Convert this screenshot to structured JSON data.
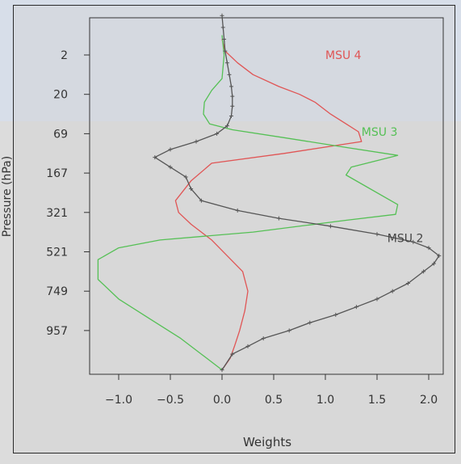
{
  "chart_data": {
    "type": "line",
    "xlabel": "Weights",
    "ylabel": "Pressure (hPa)",
    "xlim": [
      -1.25,
      2.2
    ],
    "x_ticks": [
      -1.0,
      -0.5,
      0.0,
      0.5,
      1.0,
      1.5,
      2.0
    ],
    "x_tick_labels": [
      "−1.0",
      "−0.5",
      "0.0",
      "0.5",
      "1.0",
      "1.5",
      "2.0"
    ],
    "y_tick_labels": [
      "2",
      "20",
      "69",
      "167",
      "321",
      "521",
      "749",
      "957"
    ],
    "y_axis_direction": "pressure increasing downward (altitude decreasing)",
    "grid": false,
    "series": [
      {
        "name": "MSU 4",
        "color": "#e05555",
        "points": [
          [
            0.0,
            0.6
          ],
          [
            0.03,
            0.9
          ],
          [
            0.15,
            1.2
          ],
          [
            0.3,
            1.5
          ],
          [
            0.55,
            1.8
          ],
          [
            0.75,
            2.0
          ],
          [
            0.9,
            2.2
          ],
          [
            1.05,
            2.5
          ],
          [
            1.2,
            2.75
          ],
          [
            1.32,
            2.95
          ],
          [
            1.35,
            3.2
          ],
          [
            0.6,
            3.5
          ],
          [
            -0.1,
            3.75
          ],
          [
            -0.3,
            4.2
          ],
          [
            -0.45,
            4.7
          ],
          [
            -0.42,
            5.0
          ],
          [
            -0.3,
            5.3
          ],
          [
            -0.1,
            5.7
          ],
          [
            0.05,
            6.1
          ],
          [
            0.2,
            6.5
          ],
          [
            0.25,
            7.0
          ],
          [
            0.22,
            7.5
          ],
          [
            0.17,
            8.0
          ],
          [
            0.12,
            8.4
          ],
          [
            0.08,
            8.7
          ],
          [
            0.0,
            9.0
          ]
        ]
      },
      {
        "name": "MSU 3",
        "color": "#55c055",
        "points": [
          [
            0.0,
            0.5
          ],
          [
            0.02,
            1.0
          ],
          [
            0.0,
            1.6
          ],
          [
            -0.1,
            1.9
          ],
          [
            -0.17,
            2.2
          ],
          [
            -0.18,
            2.5
          ],
          [
            -0.12,
            2.75
          ],
          [
            0.1,
            2.9
          ],
          [
            0.6,
            3.1
          ],
          [
            1.2,
            3.35
          ],
          [
            1.7,
            3.55
          ],
          [
            1.25,
            3.85
          ],
          [
            1.2,
            4.05
          ],
          [
            1.7,
            4.8
          ],
          [
            1.68,
            5.05
          ],
          [
            1.2,
            5.2
          ],
          [
            0.3,
            5.5
          ],
          [
            -0.6,
            5.7
          ],
          [
            -1.0,
            5.9
          ],
          [
            -1.2,
            6.2
          ],
          [
            -1.2,
            6.7
          ],
          [
            -1.0,
            7.2
          ],
          [
            -0.7,
            7.7
          ],
          [
            -0.4,
            8.2
          ],
          [
            -0.2,
            8.6
          ],
          [
            0.0,
            9.0
          ]
        ]
      },
      {
        "name": "MSU 2",
        "color": "#555555",
        "marker": "+",
        "points": [
          [
            0.0,
            0.0
          ],
          [
            0.01,
            0.3
          ],
          [
            0.02,
            0.6
          ],
          [
            0.03,
            0.9
          ],
          [
            0.05,
            1.2
          ],
          [
            0.07,
            1.5
          ],
          [
            0.09,
            1.8
          ],
          [
            0.1,
            2.05
          ],
          [
            0.1,
            2.3
          ],
          [
            0.09,
            2.55
          ],
          [
            0.05,
            2.8
          ],
          [
            -0.05,
            3.0
          ],
          [
            -0.25,
            3.2
          ],
          [
            -0.5,
            3.4
          ],
          [
            -0.65,
            3.6
          ],
          [
            -0.5,
            3.85
          ],
          [
            -0.35,
            4.1
          ],
          [
            -0.3,
            4.4
          ],
          [
            -0.2,
            4.7
          ],
          [
            0.15,
            4.95
          ],
          [
            0.55,
            5.15
          ],
          [
            1.05,
            5.35
          ],
          [
            1.5,
            5.55
          ],
          [
            1.85,
            5.75
          ],
          [
            2.0,
            5.9
          ],
          [
            2.1,
            6.1
          ],
          [
            2.05,
            6.3
          ],
          [
            1.95,
            6.5
          ],
          [
            1.8,
            6.8
          ],
          [
            1.65,
            7.0
          ],
          [
            1.5,
            7.2
          ],
          [
            1.3,
            7.4
          ],
          [
            1.1,
            7.6
          ],
          [
            0.85,
            7.8
          ],
          [
            0.65,
            8.0
          ],
          [
            0.4,
            8.2
          ],
          [
            0.25,
            8.4
          ],
          [
            0.1,
            8.6
          ],
          [
            0.0,
            9.0
          ]
        ]
      }
    ],
    "annotations": [
      {
        "text": "MSU 4",
        "x": 1.0,
        "y": 1.0,
        "color": "#e05555"
      },
      {
        "text": "MSU 3",
        "x": 1.35,
        "y": 2.95,
        "color": "#55c055"
      },
      {
        "text": "MSU 2",
        "x": 1.6,
        "y": 5.65,
        "color": "#444444"
      }
    ]
  }
}
